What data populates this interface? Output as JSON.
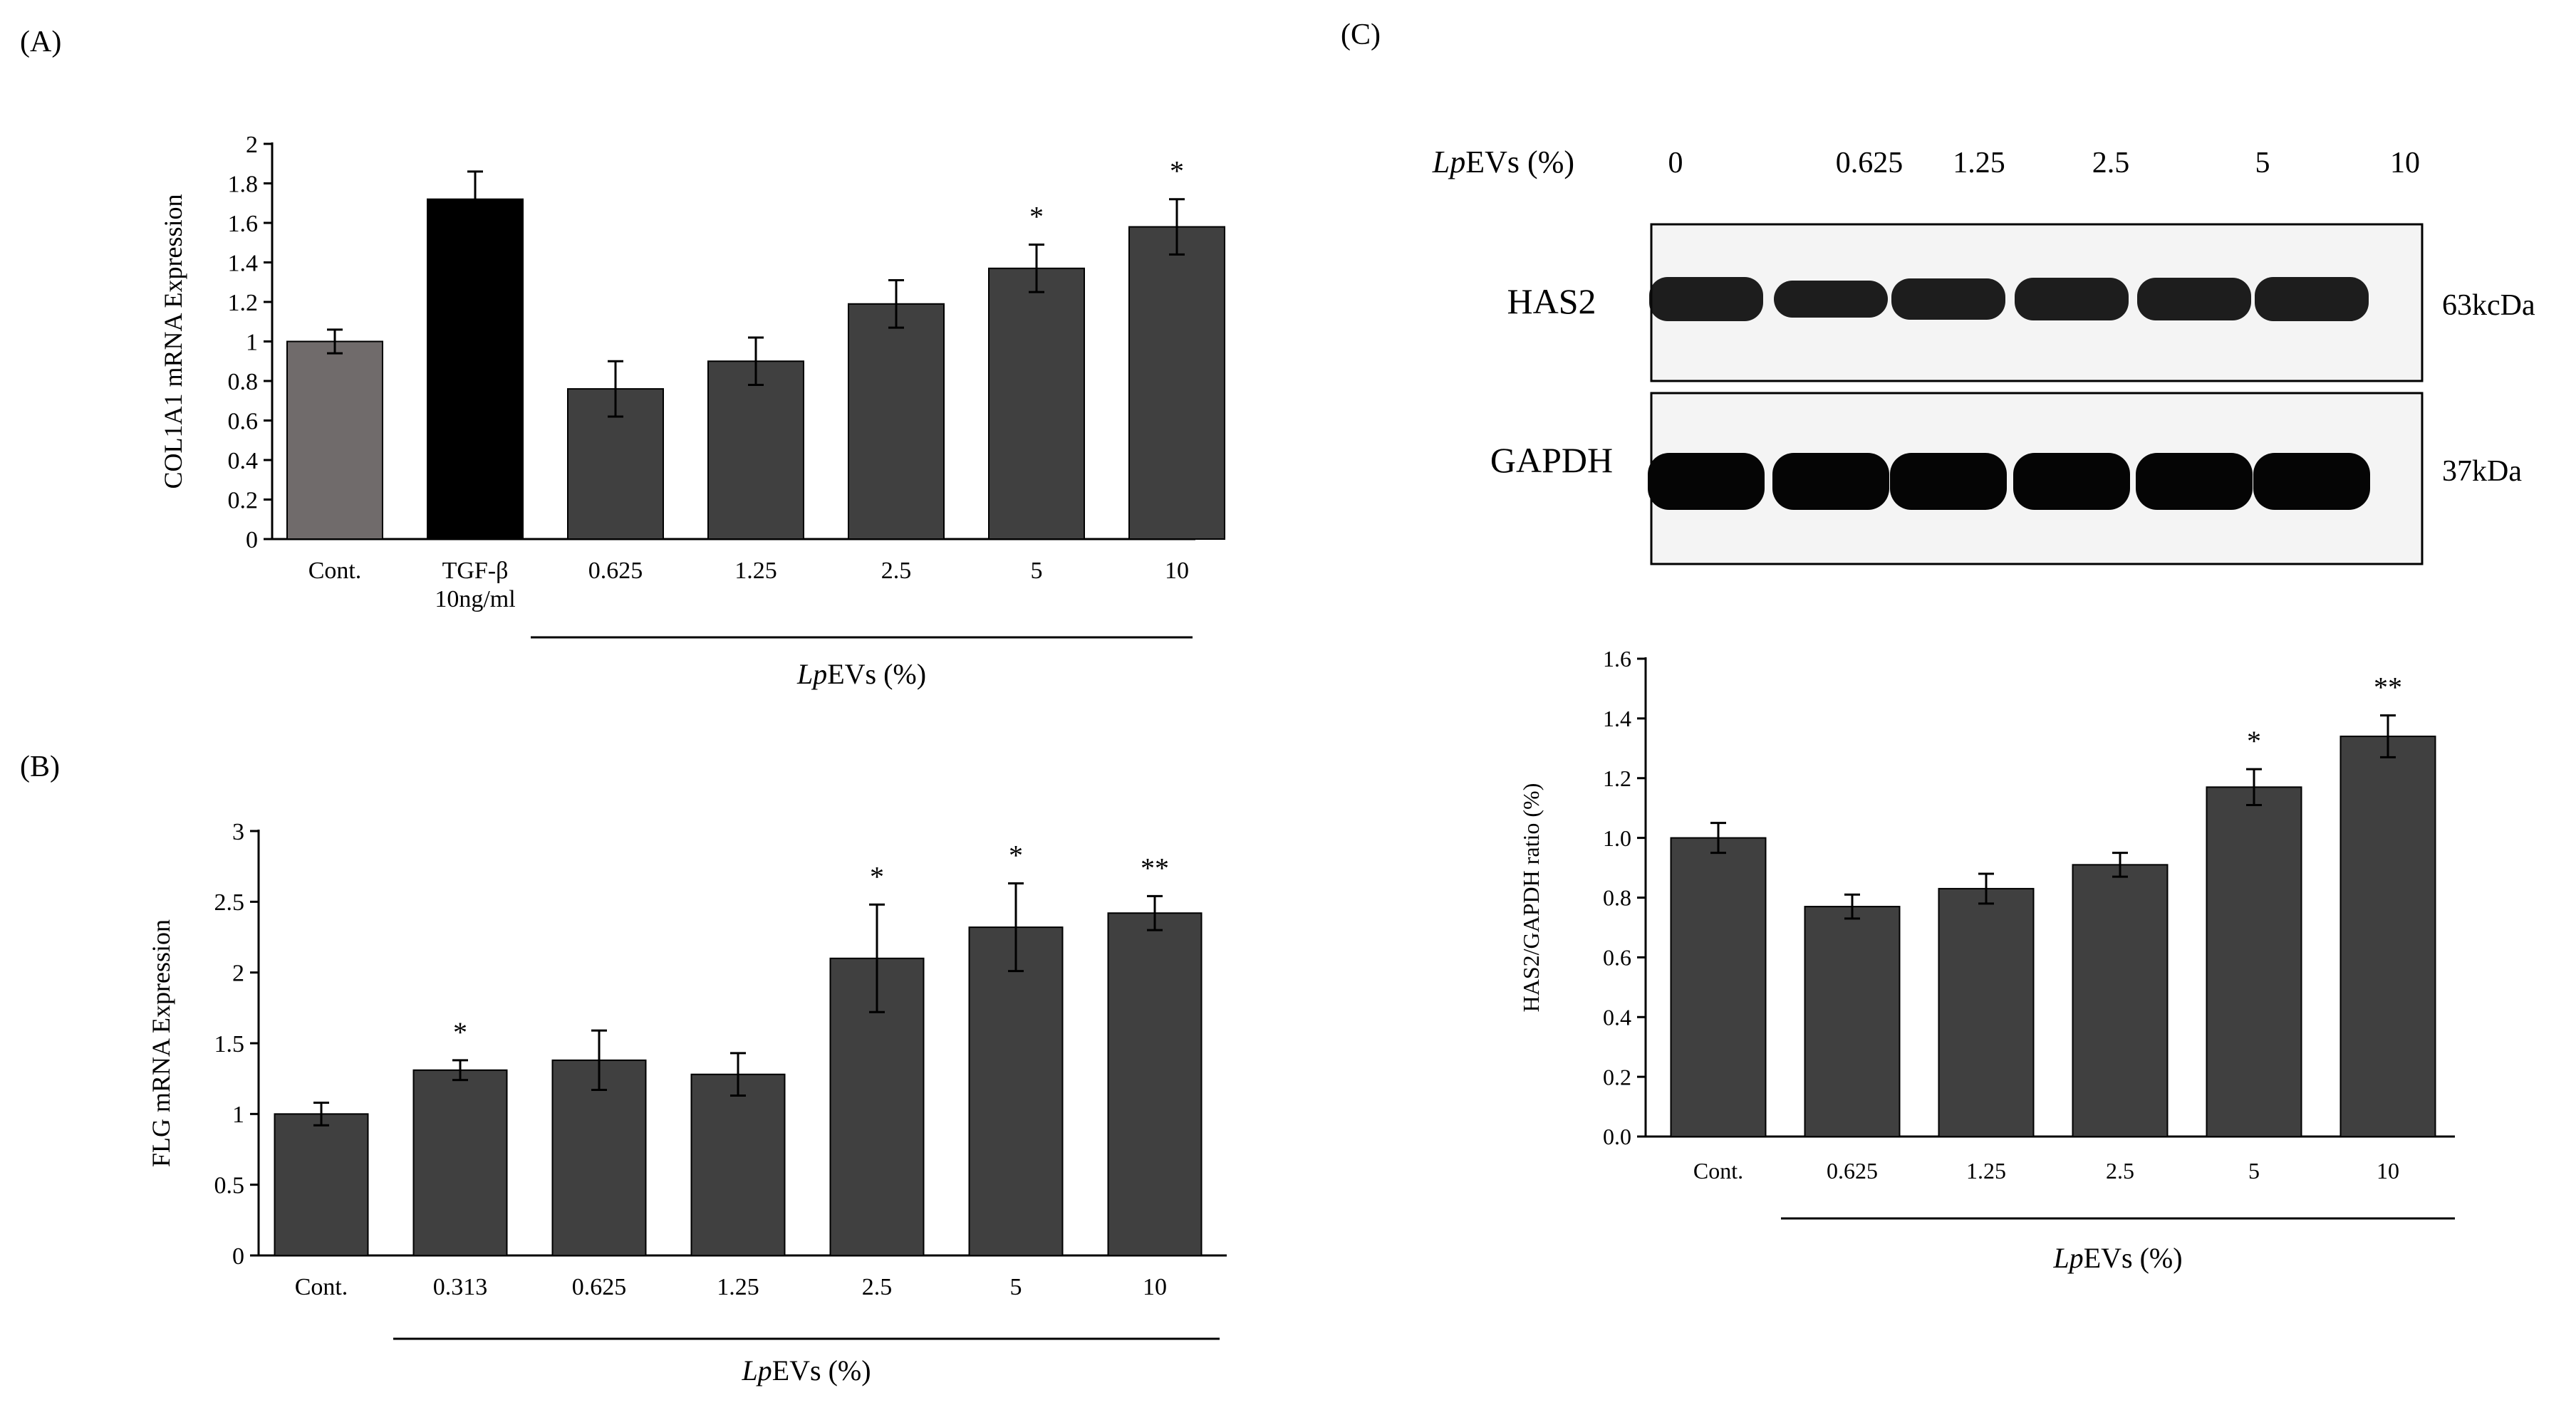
{
  "panel_labels": {
    "a": "(A)",
    "b": "(B)",
    "c": "(C)"
  },
  "colors": {
    "bar_dark": "#404040",
    "bar_control_A": "#706b6b",
    "bar_tgf": "#000000",
    "axis": "#000000",
    "blot_band": "#0a0a0a",
    "blot_bg": "#f4f4f4"
  },
  "blot": {
    "header_label_italic": "Lp",
    "header_label_rest": "EVs (%)",
    "lanes": [
      "0",
      "0.625",
      "1.25",
      "2.5",
      "5",
      "10"
    ],
    "rows": [
      {
        "name": "HAS2",
        "size": "63kcDa"
      },
      {
        "name": "GAPDH",
        "size": "37kDa"
      }
    ]
  },
  "chart_data": [
    {
      "id": "A",
      "type": "bar",
      "ylabel": "COL1A1 mRNA Expression",
      "ylim": [
        0,
        2
      ],
      "yticks": [
        "0",
        "0.2",
        "0.4",
        "0.6",
        "0.8",
        "1",
        "1.2",
        "1.4",
        "1.6",
        "1.8",
        "2"
      ],
      "categories": [
        "Cont.",
        "TGF-β\n10ng/ml",
        "0.625",
        "1.25",
        "2.5",
        "5",
        "10"
      ],
      "values": [
        1.0,
        1.72,
        0.76,
        0.9,
        1.19,
        1.37,
        1.58
      ],
      "errors": [
        0.06,
        0.14,
        0.14,
        0.12,
        0.12,
        0.12,
        0.14
      ],
      "significance": [
        "",
        "",
        "",
        "",
        "",
        "*",
        "*"
      ],
      "bar_colors": [
        "#706b6b",
        "#000000",
        "#404040",
        "#404040",
        "#404040",
        "#404040",
        "#404040"
      ],
      "group_label_italic": "Lp",
      "group_label_rest": "EVs (%)"
    },
    {
      "id": "B",
      "type": "bar",
      "ylabel": "FLG mRNA Expression",
      "ylim": [
        0,
        3
      ],
      "yticks": [
        "0",
        "0.5",
        "1",
        "1.5",
        "2",
        "2.5",
        "3"
      ],
      "categories": [
        "Cont.",
        "0.313",
        "0.625",
        "1.25",
        "2.5",
        "5",
        "10"
      ],
      "values": [
        1.0,
        1.31,
        1.38,
        1.28,
        2.1,
        2.32,
        2.42
      ],
      "errors": [
        0.08,
        0.07,
        0.21,
        0.15,
        0.38,
        0.31,
        0.12
      ],
      "significance": [
        "",
        "*",
        "",
        "",
        "*",
        "*",
        "**"
      ],
      "bar_colors": [
        "#404040",
        "#404040",
        "#404040",
        "#404040",
        "#404040",
        "#404040",
        "#404040"
      ],
      "group_label_italic": "Lp",
      "group_label_rest": "EVs (%)"
    },
    {
      "id": "C",
      "type": "bar",
      "ylabel": "HAS2/GAPDH ratio (%)",
      "ylim": [
        0,
        1.6
      ],
      "yticks": [
        "0.0",
        "0.2",
        "0.4",
        "0.6",
        "0.8",
        "1.0",
        "1.2",
        "1.4",
        "1.6"
      ],
      "categories": [
        "Cont.",
        "0.625",
        "1.25",
        "2.5",
        "5",
        "10"
      ],
      "values": [
        1.0,
        0.77,
        0.83,
        0.91,
        1.17,
        1.34
      ],
      "errors": [
        0.05,
        0.04,
        0.05,
        0.04,
        0.06,
        0.07
      ],
      "significance": [
        "",
        "",
        "",
        "",
        "*",
        "**"
      ],
      "bar_colors": [
        "#404040",
        "#404040",
        "#404040",
        "#404040",
        "#404040",
        "#404040"
      ],
      "group_label_italic": "Lp",
      "group_label_rest": "EVs (%)"
    }
  ]
}
